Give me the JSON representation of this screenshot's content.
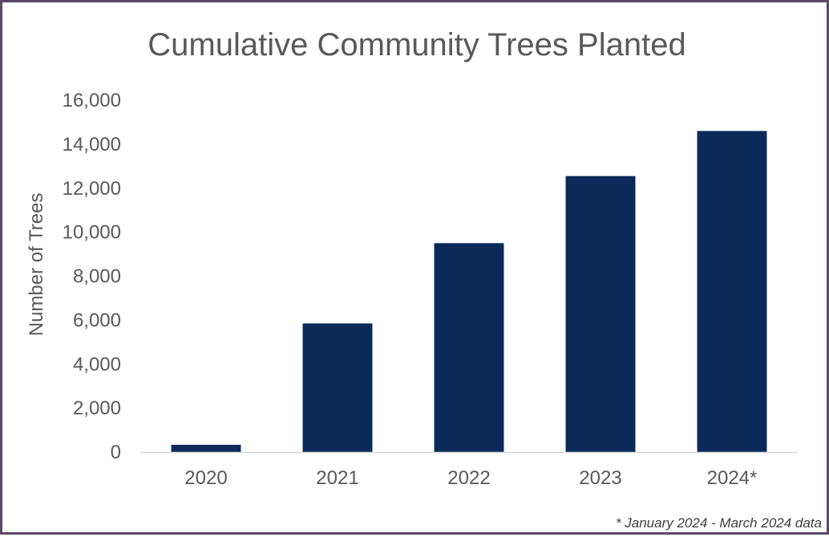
{
  "chart_data": {
    "type": "bar",
    "title": "Cumulative Community Trees Planted",
    "xlabel": "",
    "ylabel": "Number of Trees",
    "categories": [
      "2020",
      "2021",
      "2022",
      "2023",
      "2024*"
    ],
    "values": [
      330,
      5850,
      9500,
      12550,
      14600
    ],
    "ylim": [
      0,
      16000
    ],
    "yticks": [
      0,
      2000,
      4000,
      6000,
      8000,
      10000,
      12000,
      14000,
      16000
    ],
    "ytick_labels": [
      "0",
      "2,000",
      "4,000",
      "6,000",
      "8,000",
      "10,000",
      "12,000",
      "14,000",
      "16,000"
    ],
    "bar_color": "#0b2a5a",
    "grid": false,
    "legend": "none",
    "footnote": "* January 2024  - March 2024 data"
  }
}
